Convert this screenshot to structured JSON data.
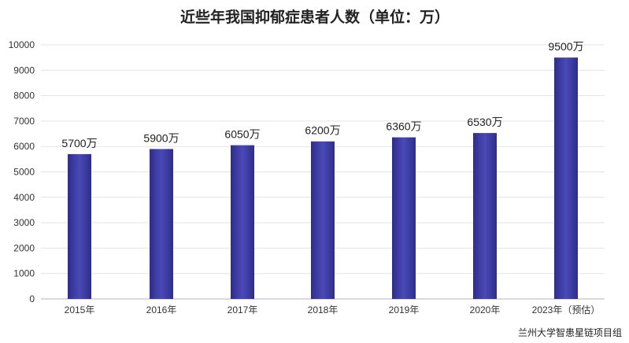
{
  "chart_data": {
    "type": "bar",
    "title": "近些年我国抑郁症患者人数（单位：万）",
    "categories": [
      "2015年",
      "2016年",
      "2017年",
      "2018年",
      "2019年",
      "2020年",
      "2023年（预估）"
    ],
    "values": [
      5700,
      5900,
      6050,
      6200,
      6360,
      6530,
      9500
    ],
    "data_labels": [
      "5700万",
      "5900万",
      "6050万",
      "6200万",
      "6360万",
      "6530万",
      "9500万"
    ],
    "ylim": [
      0,
      10000
    ],
    "yticks": [
      0,
      1000,
      2000,
      3000,
      4000,
      5000,
      6000,
      7000,
      8000,
      9000,
      10000
    ],
    "ytick_labels": [
      "0",
      "1000",
      "2000",
      "3000",
      "4000",
      "5000",
      "6000",
      "7000",
      "8000",
      "9000",
      "10000"
    ],
    "xlabel": "",
    "ylabel": "",
    "grid": true,
    "legend": "none",
    "bar_color": "#2e2d8a",
    "bar_highlight": "#4a4ab8"
  },
  "source": "兰州大学智患星链项目组"
}
